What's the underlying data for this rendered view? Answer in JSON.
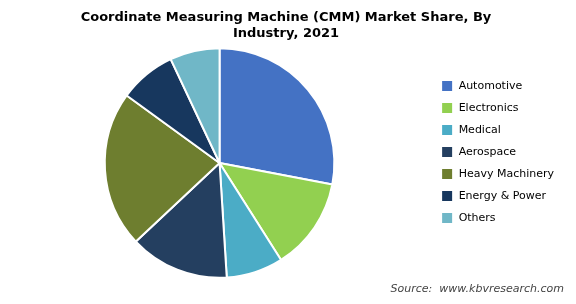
{
  "chart_data": {
    "type": "pie",
    "title": [
      "Coordinate Measuring Machine (CMM) Market Share, By",
      "Industry, 2021"
    ],
    "annotations": [
      "Source:  www.kbvresearch.com"
    ],
    "categories": [
      "Automotive",
      "Electronics",
      "Medical",
      "Aerospace",
      "Heavy Machinery",
      "Energy & Power",
      "Others"
    ],
    "values": [
      28,
      13,
      8,
      14,
      22,
      8,
      7
    ],
    "colors": [
      "#4472c4",
      "#92d050",
      "#4bacc6",
      "#243f60",
      "#6e7e2f",
      "#17375e",
      "#70b7c7"
    ],
    "legend": "right"
  }
}
